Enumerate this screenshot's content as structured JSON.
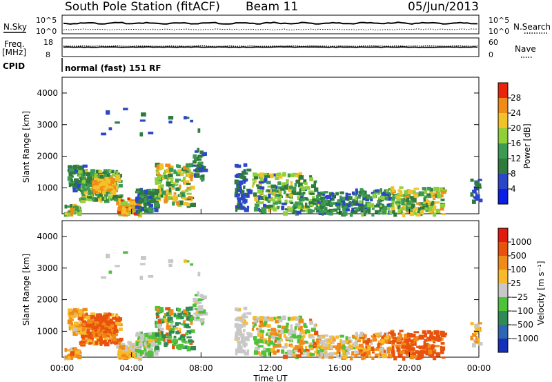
{
  "header": {
    "station": "South Pole Station (fitACF)",
    "beam": "Beam 11",
    "date": "05/Jun/2013"
  },
  "panels": {
    "nsky": {
      "label": "N.Sky",
      "ticks": [
        "10^5",
        "10^0"
      ]
    },
    "nsearch": {
      "label": "N.Search",
      "ticks": [
        "10^5",
        "10^0"
      ]
    },
    "freq": {
      "label": "Freq.",
      "unit": "[MHz]",
      "ticks": [
        "18",
        "8"
      ]
    },
    "nave": {
      "label": "Nave",
      "ticks": [
        "60",
        "0"
      ]
    },
    "cpid": {
      "label": "CPID",
      "value": "normal (fast) 151 RF"
    }
  },
  "chart_data": [
    {
      "type": "heatmap",
      "name": "Power",
      "ylabel": "Slant Range [km]",
      "xlabel": "",
      "x_ticks": [
        "00:00",
        "04:00",
        "08:00",
        "12:00",
        "16:00",
        "20:00",
        "00:00"
      ],
      "x_range_hours": [
        0,
        24
      ],
      "y_ticks": [
        1000,
        2000,
        3000,
        4000
      ],
      "y_range": [
        180,
        4500
      ],
      "colorbar": {
        "label": "Power [dB]",
        "ticks": [
          "28",
          "24",
          "20",
          "16",
          "12",
          "8",
          "4"
        ],
        "tick_values": [
          28,
          24,
          20,
          16,
          12,
          8,
          4
        ],
        "range": [
          0,
          32
        ],
        "colors": [
          "#0a1ee6",
          "#2b46c8",
          "#2f7a3c",
          "#3c9a52",
          "#8ecf3a",
          "#f2c22a",
          "#f08a18",
          "#e8260e"
        ]
      }
    },
    {
      "type": "heatmap",
      "name": "Velocity",
      "ylabel": "Slant Range [km]",
      "xlabel": "Time UT",
      "x_ticks": [
        "00:00",
        "04:00",
        "08:00",
        "12:00",
        "16:00",
        "20:00",
        "00:00"
      ],
      "x_range_hours": [
        0,
        24
      ],
      "y_ticks": [
        1000,
        2000,
        3000,
        4000
      ],
      "y_range": [
        180,
        4500
      ],
      "colorbar": {
        "label": "Velocity [m s⁻¹]",
        "ticks": [
          "1000",
          "500",
          "100",
          "25",
          "−25",
          "−100",
          "−500",
          "−1000"
        ],
        "colors": [
          "#1530b8",
          "#2f66b4",
          "#2f8a58",
          "#4ec23a",
          "#c8c8c8",
          "#f7ba2a",
          "#f08a18",
          "#e9520c",
          "#e31a10"
        ]
      }
    }
  ],
  "scatter": [
    {
      "t0": 0.3,
      "t1": 1.2,
      "r0": 1000,
      "r1": 1750,
      "n": 70,
      "p": [
        6,
        14
      ],
      "v": [
        -80,
        40
      ]
    },
    {
      "t0": 0.9,
      "t1": 3.3,
      "r0": 650,
      "r1": 1600,
      "n": 220,
      "p": [
        8,
        24
      ],
      "v": [
        -250,
        20
      ]
    },
    {
      "t0": 1.7,
      "t1": 3.0,
      "r0": 900,
      "r1": 1350,
      "n": 90,
      "p": [
        20,
        28
      ],
      "v": [
        -180,
        -40
      ]
    },
    {
      "t0": 0.1,
      "t1": 1.0,
      "r0": 200,
      "r1": 500,
      "n": 45,
      "p": [
        10,
        26
      ],
      "v": [
        -120,
        30
      ]
    },
    {
      "t0": 3.1,
      "t1": 4.4,
      "r0": 200,
      "r1": 700,
      "n": 90,
      "p": [
        18,
        30
      ],
      "v": [
        -50,
        60
      ]
    },
    {
      "t0": 4.2,
      "t1": 5.4,
      "r0": 300,
      "r1": 1000,
      "n": 100,
      "p": [
        6,
        14
      ],
      "v": [
        20,
        150
      ]
    },
    {
      "t0": 5.3,
      "t1": 7.4,
      "r0": 500,
      "r1": 1800,
      "n": 150,
      "p": [
        8,
        26
      ],
      "v": [
        -200,
        900
      ]
    },
    {
      "t0": 7.5,
      "t1": 8.1,
      "r0": 1300,
      "r1": 2300,
      "n": 40,
      "p": [
        6,
        14
      ],
      "v": [
        20,
        120
      ]
    },
    {
      "t0": 9.9,
      "t1": 10.7,
      "r0": 250,
      "r1": 1800,
      "n": 60,
      "p": [
        4,
        12
      ],
      "v": [
        20,
        80
      ]
    },
    {
      "t0": 10.9,
      "t1": 14.6,
      "r0": 250,
      "r1": 1500,
      "n": 220,
      "p": [
        6,
        22
      ],
      "v": [
        -120,
        200
      ]
    },
    {
      "t0": 14.6,
      "t1": 16.8,
      "r0": 200,
      "r1": 900,
      "n": 100,
      "p": [
        6,
        16
      ],
      "v": [
        -60,
        120
      ]
    },
    {
      "t0": 16.8,
      "t1": 18.8,
      "r0": 200,
      "r1": 1000,
      "n": 120,
      "p": [
        6,
        18
      ],
      "v": [
        -160,
        60
      ]
    },
    {
      "t0": 18.8,
      "t1": 21.9,
      "r0": 200,
      "r1": 1050,
      "n": 170,
      "p": [
        8,
        26
      ],
      "v": [
        -300,
        -50
      ]
    },
    {
      "t0": 23.5,
      "t1": 24.0,
      "r0": 600,
      "r1": 1300,
      "n": 20,
      "p": [
        4,
        10
      ],
      "v": [
        -100,
        100
      ]
    },
    {
      "t0": 1.9,
      "t1": 8.0,
      "r0": 2700,
      "r1": 3600,
      "n": 16,
      "p": [
        4,
        10
      ],
      "v": [
        0,
        150
      ]
    }
  ]
}
